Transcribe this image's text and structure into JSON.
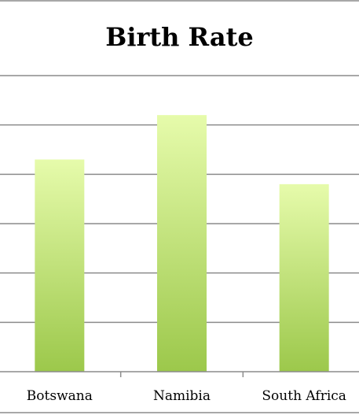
{
  "chart_data": {
    "type": "bar",
    "title": "Birth Rate",
    "categories": [
      "Botswana",
      "Namibia",
      "South Africa"
    ],
    "values": [
      4.3,
      5.2,
      3.8
    ],
    "ylim": [
      0,
      6
    ],
    "grid": true,
    "colors": {
      "bar_top": "#e6fbab",
      "bar_bottom": "#9cc84b",
      "grid": "#8c8c8c",
      "title": "#000000",
      "label": "#000000"
    }
  }
}
